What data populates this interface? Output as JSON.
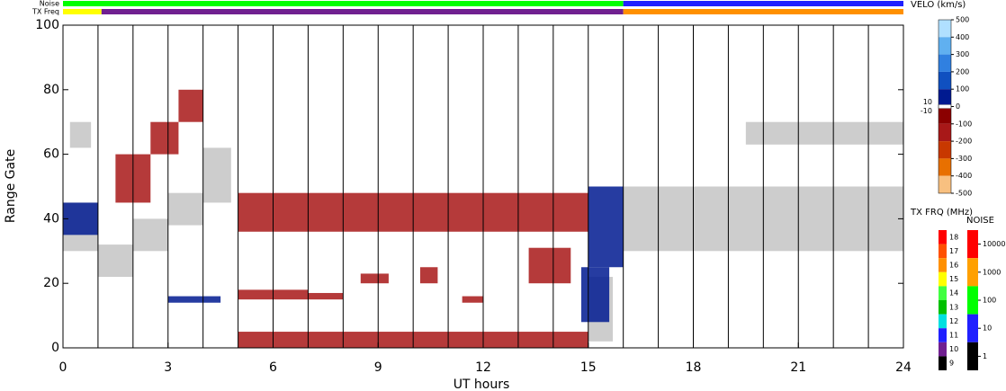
{
  "chart_data": {
    "type": "range-time",
    "x_label": "UT hours",
    "y_label": "Range Gate",
    "xlim": [
      0,
      24
    ],
    "xticks": [
      0,
      3,
      6,
      9,
      12,
      15,
      18,
      21,
      24
    ],
    "ylim": [
      0,
      100
    ],
    "yticks": [
      0,
      20,
      40,
      60,
      80,
      100
    ],
    "grid": true,
    "noise_label": "Noise",
    "tx_label": "TX Freq",
    "noise_strip": [
      {
        "t": [
          0,
          16
        ],
        "value": 100
      },
      {
        "t": [
          16,
          24
        ],
        "value": 10
      }
    ],
    "tx_strip": [
      {
        "t": [
          0,
          1.1
        ],
        "value": 15
      },
      {
        "t": [
          1.1,
          16
        ],
        "value": 10
      },
      {
        "t": [
          16,
          24
        ],
        "value": 16
      }
    ],
    "ground_scatter_color": "#c8c8c8",
    "ground_scatter": [
      {
        "t": [
          0,
          1
        ],
        "gate": [
          30,
          45
        ]
      },
      {
        "t": [
          0.2,
          0.8
        ],
        "gate": [
          62,
          70
        ]
      },
      {
        "t": [
          1,
          2
        ],
        "gate": [
          22,
          32
        ]
      },
      {
        "t": [
          2,
          3
        ],
        "gate": [
          30,
          40
        ]
      },
      {
        "t": [
          3,
          4
        ],
        "gate": [
          38,
          48
        ]
      },
      {
        "t": [
          4,
          4.8
        ],
        "gate": [
          45,
          62
        ]
      },
      {
        "t": [
          15,
          15.7
        ],
        "gate": [
          2,
          22
        ]
      },
      {
        "t": [
          16,
          24
        ],
        "gate": [
          30,
          50
        ]
      },
      {
        "t": [
          19.5,
          24
        ],
        "gate": [
          63,
          70
        ]
      }
    ],
    "regions": [
      {
        "t": [
          0,
          1
        ],
        "gate": [
          35,
          45
        ],
        "velocity": 50
      },
      {
        "t": [
          1.5,
          2.5
        ],
        "gate": [
          45,
          60
        ],
        "velocity": -150
      },
      {
        "t": [
          2.5,
          3.3
        ],
        "gate": [
          60,
          70
        ],
        "velocity": -150
      },
      {
        "t": [
          3.3,
          4
        ],
        "gate": [
          70,
          80
        ],
        "velocity": -150
      },
      {
        "t": [
          5,
          15
        ],
        "gate": [
          36,
          48
        ],
        "velocity": -150
      },
      {
        "t": [
          5,
          15
        ],
        "gate": [
          0,
          5
        ],
        "velocity": -150
      },
      {
        "t": [
          15,
          16
        ],
        "gate": [
          25,
          50
        ],
        "velocity": 100
      },
      {
        "t": [
          14.8,
          15.6
        ],
        "gate": [
          8,
          25
        ],
        "velocity": 100
      },
      {
        "t": [
          13.3,
          14.5
        ],
        "gate": [
          20,
          31
        ],
        "velocity": -150
      },
      {
        "t": [
          3,
          4.5
        ],
        "gate": [
          14,
          16
        ],
        "velocity": 100
      },
      {
        "t": [
          5,
          7
        ],
        "gate": [
          15,
          18
        ],
        "velocity": -150
      },
      {
        "t": [
          7,
          8
        ],
        "gate": [
          15,
          17
        ],
        "velocity": -150
      },
      {
        "t": [
          10.2,
          10.7
        ],
        "gate": [
          20,
          25
        ],
        "velocity": -150
      },
      {
        "t": [
          8.5,
          9.3
        ],
        "gate": [
          20,
          23
        ],
        "velocity": -150
      },
      {
        "t": [
          11.4,
          12
        ],
        "gate": [
          14,
          16
        ],
        "velocity": -150
      }
    ],
    "velocity_scale": {
      "title": "VELO (km/s)",
      "ticks": [
        500,
        400,
        300,
        200,
        100,
        0,
        -100,
        -200,
        -300,
        -400,
        -500
      ],
      "colors": [
        "#b0e0ff",
        "#60b0f0",
        "#3080e0",
        "#1050c0",
        "#001a90",
        "#8b0000",
        "#a81818",
        "#c83800",
        "#e87000",
        "#f8c080"
      ],
      "zero_labels": [
        "10",
        "-10"
      ]
    },
    "tx_scale": {
      "title": "TX FRQ (MHz)",
      "ticks": [
        18,
        17,
        16,
        15,
        14,
        13,
        12,
        11,
        10,
        9
      ],
      "colors": [
        "#ff0000",
        "#ff5000",
        "#ff9000",
        "#ffff00",
        "#40ff40",
        "#00c000",
        "#00e0e0",
        "#2020ff",
        "#702090",
        "#000000"
      ]
    },
    "noise_scale": {
      "title": "NOISE",
      "ticks": [
        {
          "value": 10000,
          "label": "10000"
        },
        {
          "value": 1000,
          "label": "1000"
        },
        {
          "value": 100,
          "label": "100"
        },
        {
          "value": 10,
          "label": "10"
        },
        {
          "value": 1,
          "label": "1"
        }
      ],
      "colors": [
        "#ff0000",
        "#ffa000",
        "#00ff00",
        "#2020ff",
        "#000000"
      ]
    }
  }
}
